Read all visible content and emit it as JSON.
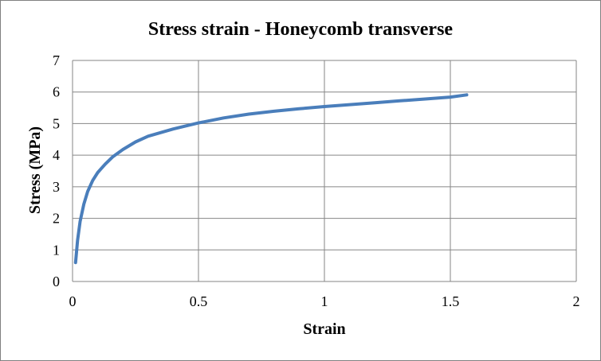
{
  "chart_data": {
    "type": "line",
    "title": "Stress strain - Honeycomb transverse",
    "xlabel": "Strain",
    "ylabel": "Stress (MPa)",
    "xlim": [
      0,
      2
    ],
    "ylim": [
      0,
      7
    ],
    "xticks": [
      {
        "value": 0,
        "label": "0"
      },
      {
        "value": 0.5,
        "label": "0.5"
      },
      {
        "value": 1,
        "label": "1"
      },
      {
        "value": 1.5,
        "label": "1.5"
      },
      {
        "value": 2,
        "label": "2"
      }
    ],
    "yticks": [
      {
        "value": 0,
        "label": "0"
      },
      {
        "value": 1,
        "label": "1"
      },
      {
        "value": 2,
        "label": "2"
      },
      {
        "value": 3,
        "label": "3"
      },
      {
        "value": 4,
        "label": "4"
      },
      {
        "value": 5,
        "label": "5"
      },
      {
        "value": 6,
        "label": "6"
      },
      {
        "value": 7,
        "label": "7"
      }
    ],
    "grid": true,
    "legend": "none",
    "line_color": "#4A7EBB",
    "gridline_color": "#868686",
    "series": [
      {
        "name": "",
        "x": [
          0.012,
          0.02,
          0.03,
          0.045,
          0.06,
          0.08,
          0.1,
          0.13,
          0.16,
          0.2,
          0.25,
          0.3,
          0.4,
          0.5,
          0.6,
          0.7,
          0.8,
          0.9,
          1.0,
          1.1,
          1.2,
          1.3,
          1.4,
          1.5,
          1.565
        ],
        "y": [
          0.6,
          1.3,
          1.9,
          2.45,
          2.85,
          3.2,
          3.45,
          3.72,
          3.95,
          4.18,
          4.42,
          4.6,
          4.83,
          5.02,
          5.18,
          5.3,
          5.39,
          5.47,
          5.54,
          5.6,
          5.66,
          5.72,
          5.78,
          5.84,
          5.91
        ]
      }
    ]
  }
}
